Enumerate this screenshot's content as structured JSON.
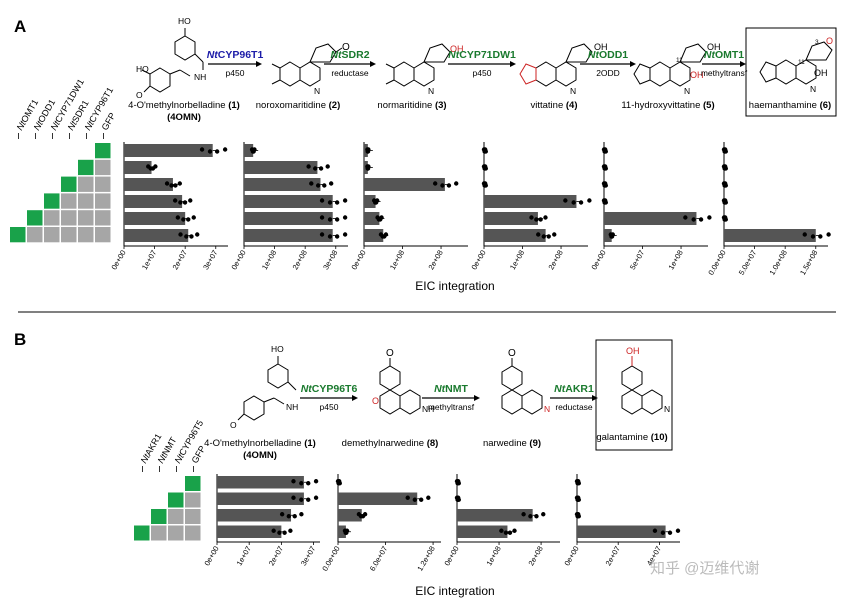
{
  "panels": {
    "A": {
      "letter": "A",
      "labels": [
        "NtOMT1",
        "NtODD1",
        "NtCYP71DW1",
        "NtSDR1",
        "NtCYP96T1",
        "GFP"
      ],
      "label_prefix": "Nt",
      "enzymes": [
        {
          "name": "NtCYP96T1",
          "sub": "p450",
          "color": "#1c1ca8"
        },
        {
          "name": "NtSDR2",
          "sub": "reductase",
          "color": "#1a7a2e"
        },
        {
          "name": "NtCYP71DW1",
          "sub": "p450",
          "color": "#1a7a2e"
        },
        {
          "name": "NtODD1",
          "sub": "2ODD",
          "color": "#1a7a2e"
        },
        {
          "name": "NtOMT1",
          "sub": "methyltransf",
          "color": "#1a7a2e"
        }
      ],
      "compounds": [
        {
          "name": "4-O'methylnorbelladine",
          "num": "(1)",
          "abbr": "(4OMN)"
        },
        {
          "name": "noroxomaritidine",
          "num": "(2)"
        },
        {
          "name": "normaritidine",
          "num": "(3)"
        },
        {
          "name": "vittatine",
          "num": "(4)"
        },
        {
          "name": "11-hydroxyvittatine",
          "num": "(5)"
        },
        {
          "name": "haemanthamine",
          "num": "(6)"
        }
      ],
      "atom_labels": {
        "oh": "OH",
        "o": "O",
        "nh": "NH",
        "n": "N",
        "ho": "HO",
        "three": "3",
        "eleven": "11"
      },
      "grid": {
        "rows": 6,
        "cols": 6,
        "filled_col_per_row": [
          5,
          4,
          3,
          2,
          1,
          0
        ]
      },
      "xlabel": "EIC integration",
      "charts": [
        {
          "ticks": [
            "0e+00",
            "1e+07",
            "2e+07",
            "3e+07"
          ],
          "max": 34000000.0,
          "values": [
            29000000.0,
            9000000.0,
            16000000.0,
            19000000.0,
            20000000.0,
            21000000.0
          ]
        },
        {
          "ticks": [
            "0e+00",
            "1e+08",
            "2e+08",
            "3e+08"
          ],
          "max": 340000000.0,
          "values": [
            30000000.0,
            240000000.0,
            250000000.0,
            290000000.0,
            290000000.0,
            290000000.0
          ]
        },
        {
          "ticks": [
            "0e+00",
            "1e+08",
            "2e+08"
          ],
          "max": 270000000.0,
          "values": [
            10000000.0,
            10000000.0,
            210000000.0,
            30000000.0,
            40000000.0,
            50000000.0
          ]
        },
        {
          "ticks": [
            "0e+00",
            "1e+08",
            "2e+08"
          ],
          "max": 270000000.0,
          "values": [
            0.0,
            0.0,
            0.0,
            240000000.0,
            140000000.0,
            160000000.0
          ]
        },
        {
          "ticks": [
            "0e+00",
            "5e+07",
            "1e+08"
          ],
          "max": 135000000.0,
          "values": [
            0,
            0,
            0,
            0,
            120000000.0,
            10000000.0
          ]
        },
        {
          "ticks": [
            "0.0e+00",
            "5.0e+07",
            "1.0e+08",
            "1.5e+08"
          ],
          "max": 170000000.0,
          "values": [
            0,
            0,
            0,
            0,
            0,
            150000000.0
          ]
        }
      ]
    },
    "B": {
      "letter": "B",
      "labels": [
        "NtAKR1",
        "NtNMT",
        "NtCYP96T5",
        "GFP"
      ],
      "label_prefix": "Nt",
      "enzymes": [
        {
          "name": "NtCYP96T6",
          "sub": "p450",
          "color": "#1a7a2e"
        },
        {
          "name": "NtNMT",
          "sub": "methyltransf",
          "color": "#1a7a2e"
        },
        {
          "name": "NtAKR1",
          "sub": "reductase",
          "color": "#1a7a2e"
        }
      ],
      "compounds": [
        {
          "name": "4-O'methylnorbelladine",
          "num": "(1)",
          "abbr": "(4OMN)"
        },
        {
          "name": "demethylnarwedine",
          "num": "(8)"
        },
        {
          "name": "narwedine",
          "num": "(9)"
        },
        {
          "name": "galantamine",
          "num": "(10)"
        }
      ],
      "grid": {
        "rows": 4,
        "cols": 4,
        "filled_col_per_row": [
          3,
          2,
          1,
          0
        ]
      },
      "xlabel": "EIC integration",
      "charts": [
        {
          "ticks": [
            "0e+00",
            "1e+07",
            "2e+07",
            "3e+07"
          ],
          "max": 32000000.0,
          "values": [
            27000000.0,
            27000000.0,
            23000000.0,
            20000000.0
          ]
        },
        {
          "ticks": [
            "0.0e+00",
            "6.0e+07",
            "1.2e+08"
          ],
          "max": 130000000.0,
          "values": [
            0,
            100000000.0,
            30000000.0,
            10000000.0
          ]
        },
        {
          "ticks": [
            "0e+00",
            "1e+08",
            "2e+08"
          ],
          "max": 245000000.0,
          "values": [
            0,
            0,
            180000000.0,
            120000000.0
          ]
        },
        {
          "ticks": [
            "0e+00",
            "2e+07",
            "4e+07"
          ],
          "max": 50000000.0,
          "values": [
            0,
            0,
            0,
            43000000.0
          ]
        }
      ]
    }
  },
  "watermark": "知乎 @迈维代谢",
  "colors": {
    "bar": "#555555",
    "green": "#19a24a",
    "gray": "#a6a6a6",
    "red": "#cc2222"
  }
}
